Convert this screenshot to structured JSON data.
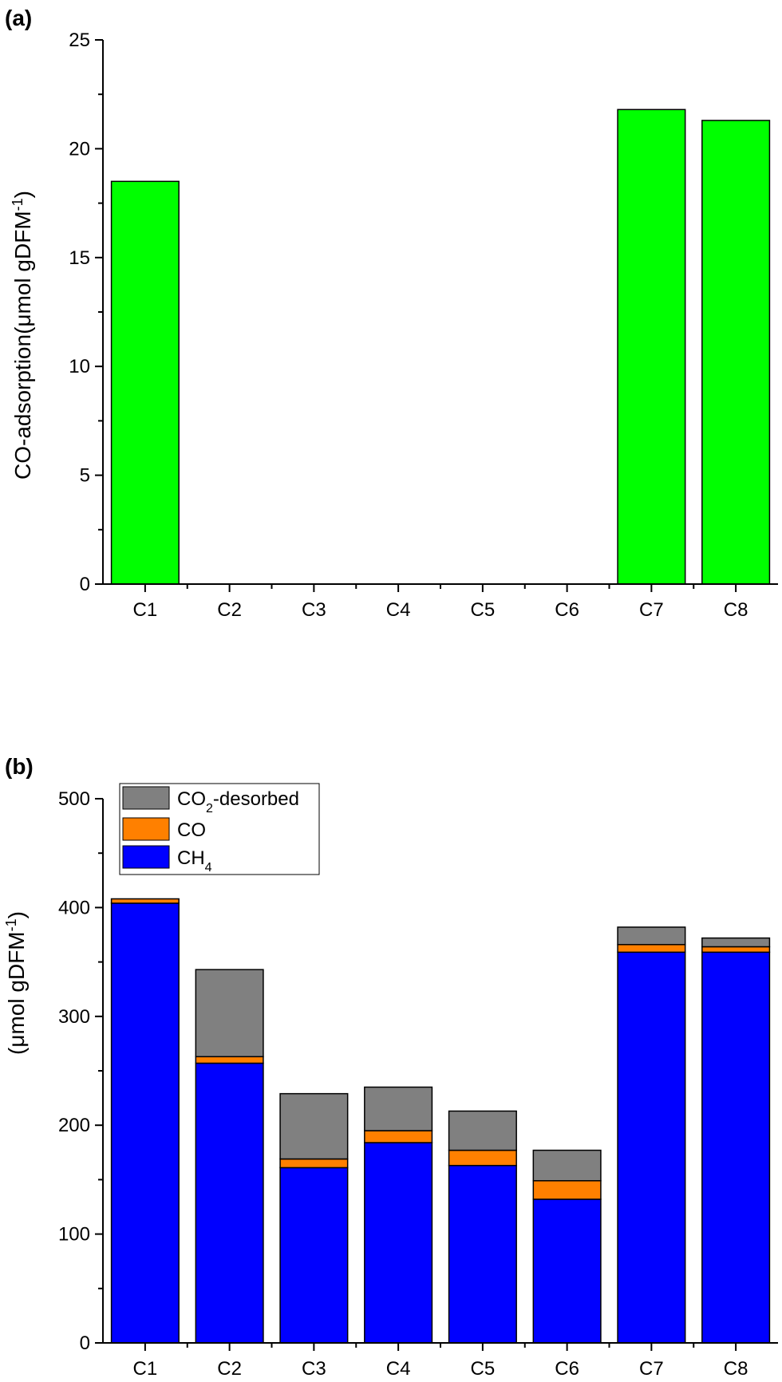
{
  "chart_data": [
    {
      "panel_label": "(a)",
      "type": "bar",
      "categories": [
        "C1",
        "C2",
        "C3",
        "C4",
        "C5",
        "C6",
        "C7",
        "C8"
      ],
      "values": [
        18.5,
        0,
        0,
        0,
        0,
        0,
        21.8,
        21.3
      ],
      "ylabel": "CO-adsorption(μmol gDFM",
      "ylabel_sup": "-1",
      "ylabel_close": ")",
      "ylim": [
        0,
        25
      ],
      "yticks": [
        0,
        5,
        10,
        15,
        20,
        25
      ],
      "color": "#00ff00",
      "grid": false
    },
    {
      "panel_label": "(b)",
      "type": "bar",
      "stacked": true,
      "categories": [
        "C1",
        "C2",
        "C3",
        "C4",
        "C5",
        "C6",
        "C7",
        "C8"
      ],
      "series": [
        {
          "name": "CH",
          "sub": "4",
          "color": "#0000ff",
          "values": [
            404,
            257,
            161,
            184,
            163,
            132,
            359,
            359
          ]
        },
        {
          "name": "CO",
          "sub": "",
          "color": "#ff8000",
          "values": [
            4,
            6,
            8,
            11,
            14,
            17,
            7,
            5
          ]
        },
        {
          "name": "CO",
          "sub": "2",
          "suffix": "-desorbed",
          "color": "#808080",
          "values": [
            0,
            80,
            60,
            40,
            36,
            28,
            16,
            8
          ]
        }
      ],
      "ylabel": "(μmol gDFM",
      "ylabel_sup": "-1",
      "ylabel_close": ")",
      "ylim": [
        0,
        500
      ],
      "yticks": [
        0,
        100,
        200,
        300,
        400,
        500
      ],
      "legend_position": "top-left",
      "grid": false
    }
  ]
}
